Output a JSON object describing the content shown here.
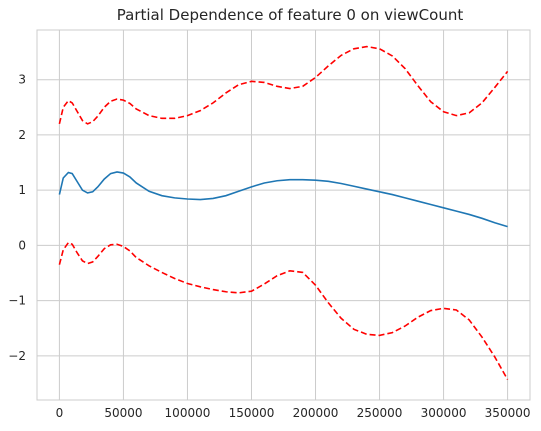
{
  "chart_data": {
    "type": "line",
    "title": "Partial Dependence of feature 0 on viewCount",
    "xlabel": "",
    "ylabel": "",
    "xlim": [
      -17500,
      367500
    ],
    "ylim": [
      -2.8,
      3.9
    ],
    "xticks": [
      0,
      50000,
      100000,
      150000,
      200000,
      250000,
      300000,
      350000
    ],
    "xtick_labels": [
      "0",
      "50000",
      "100000",
      "150000",
      "200000",
      "250000",
      "300000",
      "350000"
    ],
    "yticks": [
      -2,
      -1,
      0,
      1,
      2,
      3
    ],
    "ytick_labels": [
      "−2",
      "−1",
      "0",
      "1",
      "2",
      "3"
    ],
    "grid": true,
    "legend": "none",
    "series": [
      {
        "style": "solid",
        "color": "#1f77b4",
        "x": [
          0,
          3000,
          7000,
          10000,
          14000,
          18000,
          22000,
          26000,
          30000,
          35000,
          40000,
          45000,
          50000,
          55000,
          60000,
          70000,
          80000,
          90000,
          100000,
          110000,
          120000,
          130000,
          140000,
          150000,
          160000,
          170000,
          180000,
          190000,
          200000,
          210000,
          220000,
          230000,
          240000,
          250000,
          260000,
          270000,
          280000,
          290000,
          300000,
          310000,
          320000,
          330000,
          340000,
          350000
        ],
        "y": [
          0.92,
          1.22,
          1.32,
          1.3,
          1.15,
          1.0,
          0.95,
          0.97,
          1.06,
          1.2,
          1.3,
          1.33,
          1.31,
          1.24,
          1.13,
          0.98,
          0.9,
          0.86,
          0.84,
          0.83,
          0.85,
          0.9,
          0.98,
          1.06,
          1.13,
          1.17,
          1.19,
          1.19,
          1.18,
          1.16,
          1.12,
          1.07,
          1.02,
          0.97,
          0.92,
          0.86,
          0.8,
          0.74,
          0.68,
          0.62,
          0.56,
          0.49,
          0.41,
          0.34
        ]
      },
      {
        "style": "dashed",
        "color": "#ff0000",
        "x": [
          0,
          3000,
          7000,
          10000,
          14000,
          18000,
          22000,
          26000,
          30000,
          35000,
          40000,
          45000,
          50000,
          55000,
          60000,
          70000,
          80000,
          90000,
          100000,
          110000,
          120000,
          130000,
          140000,
          150000,
          160000,
          170000,
          180000,
          190000,
          200000,
          210000,
          220000,
          230000,
          240000,
          250000,
          260000,
          270000,
          280000,
          290000,
          300000,
          310000,
          320000,
          330000,
          340000,
          350000
        ],
        "y": [
          2.2,
          2.5,
          2.62,
          2.58,
          2.42,
          2.26,
          2.2,
          2.24,
          2.34,
          2.5,
          2.61,
          2.65,
          2.63,
          2.57,
          2.47,
          2.35,
          2.3,
          2.3,
          2.35,
          2.44,
          2.58,
          2.76,
          2.91,
          2.97,
          2.95,
          2.88,
          2.84,
          2.88,
          3.04,
          3.25,
          3.44,
          3.56,
          3.6,
          3.56,
          3.43,
          3.2,
          2.89,
          2.6,
          2.42,
          2.35,
          2.4,
          2.58,
          2.86,
          3.15
        ]
      },
      {
        "style": "dashed",
        "color": "#ff0000",
        "x": [
          0,
          3000,
          7000,
          10000,
          14000,
          18000,
          22000,
          26000,
          30000,
          35000,
          40000,
          45000,
          50000,
          55000,
          60000,
          70000,
          80000,
          90000,
          100000,
          110000,
          120000,
          130000,
          140000,
          150000,
          160000,
          170000,
          180000,
          190000,
          200000,
          210000,
          220000,
          230000,
          240000,
          250000,
          260000,
          270000,
          280000,
          290000,
          300000,
          310000,
          320000,
          330000,
          340000,
          350000
        ],
        "y": [
          -0.35,
          -0.08,
          0.05,
          0.02,
          -0.14,
          -0.28,
          -0.33,
          -0.3,
          -0.2,
          -0.06,
          0.01,
          0.02,
          -0.02,
          -0.1,
          -0.22,
          -0.37,
          -0.49,
          -0.6,
          -0.69,
          -0.75,
          -0.8,
          -0.84,
          -0.86,
          -0.83,
          -0.7,
          -0.55,
          -0.46,
          -0.49,
          -0.72,
          -1.04,
          -1.32,
          -1.52,
          -1.61,
          -1.63,
          -1.58,
          -1.46,
          -1.3,
          -1.18,
          -1.14,
          -1.17,
          -1.35,
          -1.66,
          -2.02,
          -2.43
        ]
      }
    ]
  }
}
